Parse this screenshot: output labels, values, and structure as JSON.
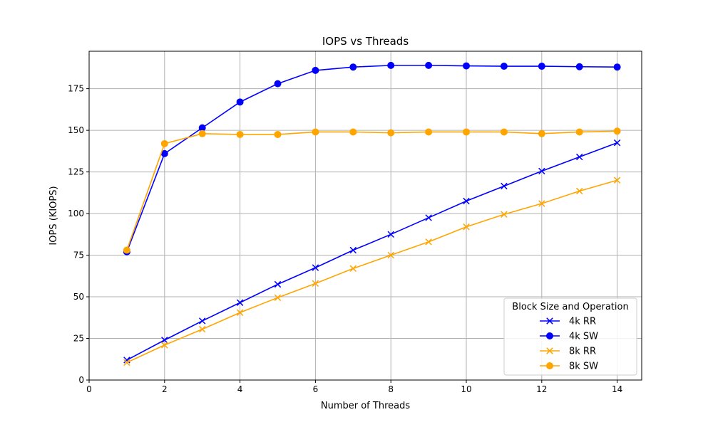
{
  "chart_data": {
    "type": "line",
    "title": "IOPS vs Threads",
    "xlabel": "Number of Threads",
    "ylabel": "IOPS (KIOPS)",
    "xlim": [
      0,
      14.65
    ],
    "ylim": [
      0,
      197.5
    ],
    "xticks": [
      0,
      2,
      4,
      6,
      8,
      10,
      12,
      14
    ],
    "yticks": [
      0,
      25,
      50,
      75,
      100,
      125,
      150,
      175
    ],
    "grid": true,
    "legend": {
      "title": "Block Size and Operation",
      "placement": "lower-right"
    },
    "x": [
      1,
      2,
      3,
      4,
      5,
      6,
      7,
      8,
      9,
      10,
      11,
      12,
      13,
      14
    ],
    "series": [
      {
        "name": "4k RR",
        "color": "#0000ff",
        "marker": "x",
        "values": [
          12,
          24,
          35.5,
          46.5,
          57.5,
          67.5,
          78,
          87.5,
          97.5,
          107.5,
          116.5,
          125.5,
          134,
          142.5
        ]
      },
      {
        "name": "4k SW",
        "color": "#0000ff",
        "marker": "o",
        "values": [
          77,
          136,
          151.5,
          167,
          178,
          186,
          188,
          189,
          189,
          188.7,
          188.5,
          188.5,
          188.2,
          188
        ]
      },
      {
        "name": "8k RR",
        "color": "#ffa500",
        "marker": "x",
        "values": [
          10.5,
          21,
          30.5,
          40.5,
          49.5,
          58,
          67,
          75,
          83,
          92,
          99.5,
          106,
          113.5,
          120
        ]
      },
      {
        "name": "8k SW",
        "color": "#ffa500",
        "marker": "o",
        "values": [
          78,
          142,
          148,
          147.5,
          147.5,
          149,
          149,
          148.5,
          149,
          149,
          149,
          148,
          149,
          149.5
        ]
      }
    ]
  }
}
